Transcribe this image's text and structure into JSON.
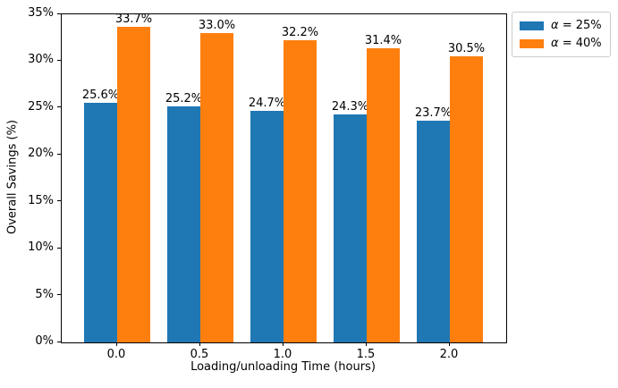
{
  "figure": {
    "background": "#ffffff",
    "axis_color": "#000000"
  },
  "chart_data": {
    "type": "bar",
    "title": "",
    "xlabel": "Loading/unloading Time (hours)",
    "ylabel": "Overall Savings (%)",
    "categories": [
      "0.0",
      "0.5",
      "1.0",
      "1.5",
      "2.0"
    ],
    "series": [
      {
        "name": "α = 25%",
        "color": "#1f77b4",
        "values": [
          25.6,
          25.2,
          24.7,
          24.3,
          23.7
        ],
        "bar_labels": [
          "25.6%",
          "25.2%",
          "24.7%",
          "24.3%",
          "23.7%"
        ]
      },
      {
        "name": "α = 40%",
        "color": "#ff7f0e",
        "values": [
          33.7,
          33.0,
          32.2,
          31.4,
          30.5
        ],
        "bar_labels": [
          "33.7%",
          "33.0%",
          "32.2%",
          "31.4%",
          "30.5%"
        ]
      }
    ],
    "ylim": [
      0,
      35
    ],
    "y_ticks": [
      {
        "value": 0,
        "label": "0%"
      },
      {
        "value": 5,
        "label": "5%"
      },
      {
        "value": 10,
        "label": "10%"
      },
      {
        "value": 15,
        "label": "15%"
      },
      {
        "value": 20,
        "label": "20%"
      },
      {
        "value": 25,
        "label": "25%"
      },
      {
        "value": 30,
        "label": "30%"
      },
      {
        "value": 35,
        "label": "35%"
      }
    ],
    "legend": {
      "position": "upper-right-outside",
      "entries": [
        "α = 25%",
        "α = 40%"
      ]
    },
    "grid": false
  }
}
